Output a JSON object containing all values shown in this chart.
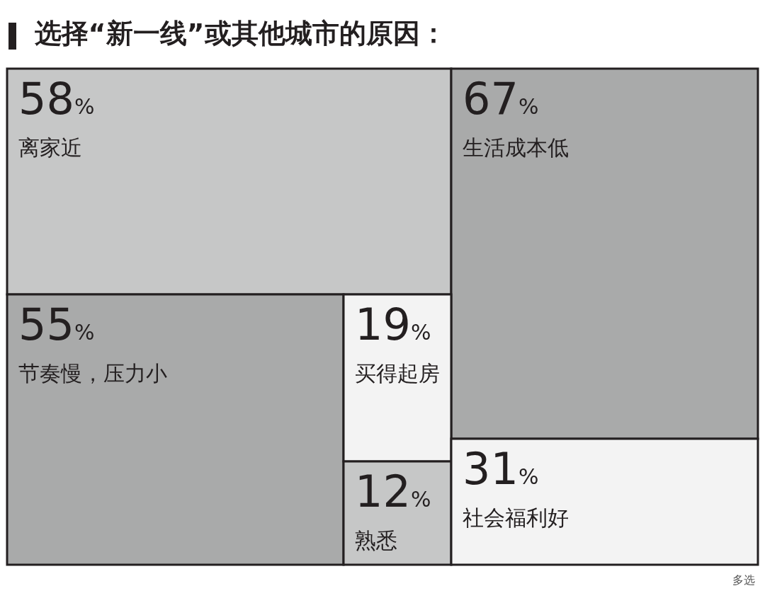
{
  "chart_data": {
    "type": "other",
    "title": "选择“新一线”或其他城市的原因：",
    "categories": [
      "离家近",
      "生活成本低",
      "节奏慢，压力小",
      "买得起房",
      "熟悉",
      "社会福利好"
    ],
    "values": [
      58,
      67,
      55,
      19,
      12,
      31
    ],
    "value_labels": [
      "58%",
      "67%",
      "55%",
      "19%",
      "12%",
      "31%"
    ],
    "colors": [
      "#c6c7c7",
      "#a9aaaa",
      "#a9aaaa",
      "#f3f3f3",
      "#c6c7c7",
      "#f3f3f3"
    ],
    "annotations": [
      "多选"
    ]
  }
}
